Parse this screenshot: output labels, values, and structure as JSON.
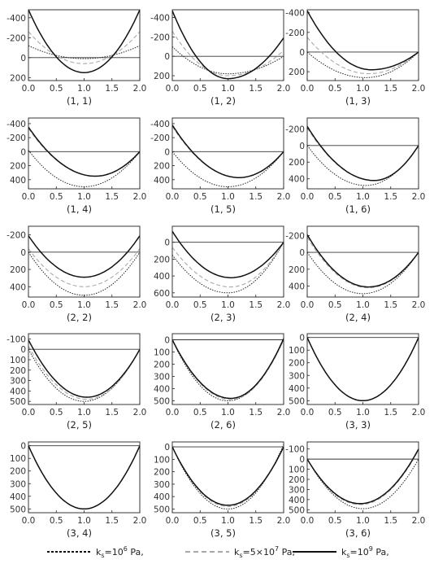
{
  "legend": {
    "items": [
      {
        "text": "k",
        "sub": "s",
        "mid": "=10",
        "sup": "6",
        "unit": " Pa,",
        "style": "dense-dashed"
      },
      {
        "text": "k",
        "sub": "s",
        "mid": "=5×10",
        "sup": "7",
        "unit": " Pa,",
        "style": "gray-dashed"
      },
      {
        "text": "k",
        "sub": "s",
        "mid": "=10",
        "sup": "9",
        "unit": " Pa,",
        "style": "solid"
      }
    ]
  },
  "chart_data": [
    {
      "type": "line",
      "title": "(1, 1)",
      "xlim": [
        0,
        2
      ],
      "ylim": [
        230,
        -480
      ],
      "yticks": [
        -400,
        -200,
        0,
        200
      ],
      "xticks": [
        0,
        0.5,
        1,
        1.5,
        2
      ],
      "series": [
        {
          "style": "solid",
          "points": [
            [
              0,
              -480
            ],
            [
              0.1,
              -320
            ],
            [
              1,
              150
            ],
            [
              1.9,
              -320
            ],
            [
              2,
              -480
            ]
          ]
        },
        {
          "style": "gray-dashed",
          "points": [
            [
              0,
              -260
            ],
            [
              1,
              60
            ],
            [
              2,
              -260
            ]
          ]
        },
        {
          "style": "dense-dashed",
          "points": [
            [
              0,
              -120
            ],
            [
              1,
              10
            ],
            [
              2,
              -120
            ]
          ]
        }
      ]
    },
    {
      "type": "line",
      "title": "(1, 2)",
      "xlim": [
        0,
        2
      ],
      "ylim": [
        250,
        -480
      ],
      "yticks": [
        -400,
        -200,
        0,
        200
      ],
      "xticks": [
        0,
        0.5,
        1,
        1.5,
        2
      ],
      "series": [
        {
          "style": "solid",
          "points": [
            [
              0,
              -470
            ],
            [
              0.05,
              -380
            ],
            [
              1,
              230
            ],
            [
              1.95,
              -80
            ],
            [
              2,
              -190
            ]
          ]
        },
        {
          "style": "gray-dashed",
          "points": [
            [
              0,
              -260
            ],
            [
              1,
              200
            ],
            [
              2,
              -60
            ]
          ]
        },
        {
          "style": "dense-dashed",
          "points": [
            [
              0,
              -100
            ],
            [
              1,
              180
            ],
            [
              2,
              0
            ]
          ]
        }
      ]
    },
    {
      "type": "line",
      "title": "(1, 3)",
      "xlim": [
        0,
        2
      ],
      "ylim": [
        290,
        -430
      ],
      "yticks": [
        -400,
        -200,
        0,
        200
      ],
      "xticks": [
        0,
        0.5,
        1,
        1.5,
        2
      ],
      "series": [
        {
          "style": "solid",
          "points": [
            [
              0,
              -420
            ],
            [
              0.05,
              -300
            ],
            [
              1.15,
              180
            ],
            [
              2,
              0
            ]
          ]
        },
        {
          "style": "gray-dashed",
          "points": [
            [
              0,
              -150
            ],
            [
              1.1,
              220
            ],
            [
              2,
              0
            ]
          ]
        },
        {
          "style": "dense-dashed",
          "points": [
            [
              0,
              0
            ],
            [
              1.05,
              260
            ],
            [
              2,
              0
            ]
          ]
        }
      ]
    },
    {
      "type": "line",
      "title": "(1, 4)",
      "xlim": [
        0,
        2
      ],
      "ylim": [
        530,
        -480
      ],
      "yticks": [
        -400,
        -200,
        0,
        200,
        400
      ],
      "xticks": [
        0,
        0.5,
        1,
        1.5,
        2
      ],
      "series": [
        {
          "style": "solid",
          "points": [
            [
              0,
              -350
            ],
            [
              1.2,
              350
            ],
            [
              2,
              0
            ]
          ]
        },
        {
          "style": "gray-dashed",
          "points": [
            [
              0,
              -330
            ],
            [
              1.2,
              350
            ],
            [
              2,
              0
            ]
          ]
        },
        {
          "style": "dense-dashed",
          "points": [
            [
              0,
              -20
            ],
            [
              1,
              500
            ],
            [
              2,
              0
            ]
          ]
        }
      ]
    },
    {
      "type": "line",
      "title": "(1, 5)",
      "xlim": [
        0,
        2
      ],
      "ylim": [
        530,
        -480
      ],
      "yticks": [
        -400,
        -200,
        0,
        200,
        400
      ],
      "xticks": [
        0,
        0.5,
        1,
        1.5,
        2
      ],
      "series": [
        {
          "style": "solid",
          "points": [
            [
              0,
              -380
            ],
            [
              1.2,
              370
            ],
            [
              2,
              0
            ]
          ]
        },
        {
          "style": "gray-dashed",
          "points": [
            [
              0,
              -360
            ],
            [
              1.2,
              370
            ],
            [
              2,
              0
            ]
          ]
        },
        {
          "style": "dense-dashed",
          "points": [
            [
              0,
              0
            ],
            [
              1,
              500
            ],
            [
              2,
              0
            ]
          ]
        }
      ]
    },
    {
      "type": "line",
      "title": "(1, 6)",
      "xlim": [
        0,
        2
      ],
      "ylim": [
        520,
        -330
      ],
      "yticks": [
        -200,
        0,
        200,
        400
      ],
      "xticks": [
        0,
        0.5,
        1,
        1.5,
        2
      ],
      "series": [
        {
          "style": "solid",
          "points": [
            [
              0,
              -230
            ],
            [
              1.2,
              420
            ],
            [
              2,
              0
            ]
          ]
        },
        {
          "style": "gray-dashed",
          "points": [
            [
              0,
              -210
            ],
            [
              1.2,
              420
            ],
            [
              2,
              0
            ]
          ]
        },
        {
          "style": "dense-dashed",
          "points": [
            [
              0,
              0
            ],
            [
              1.05,
              480
            ],
            [
              2,
              0
            ]
          ]
        }
      ]
    },
    {
      "type": "line",
      "title": "(2, 2)",
      "xlim": [
        0,
        2
      ],
      "ylim": [
        520,
        -300
      ],
      "yticks": [
        -200,
        0,
        200,
        400
      ],
      "xticks": [
        0,
        0.5,
        1,
        1.5,
        2
      ],
      "series": [
        {
          "style": "solid",
          "points": [
            [
              0,
              -190
            ],
            [
              0.05,
              -120
            ],
            [
              1,
              290
            ],
            [
              1.95,
              -120
            ],
            [
              2,
              -190
            ]
          ]
        },
        {
          "style": "gray-dashed",
          "points": [
            [
              0,
              -40
            ],
            [
              1,
              400
            ],
            [
              2,
              -40
            ]
          ]
        },
        {
          "style": "dense-dashed",
          "points": [
            [
              0,
              0
            ],
            [
              1,
              500
            ],
            [
              2,
              0
            ]
          ]
        }
      ]
    },
    {
      "type": "line",
      "title": "(2, 3)",
      "xlim": [
        0,
        2
      ],
      "ylim": [
        650,
        -190
      ],
      "yticks": [
        0,
        200,
        400,
        600
      ],
      "xticks": [
        0,
        0.5,
        1,
        1.5,
        2
      ],
      "series": [
        {
          "style": "solid",
          "points": [
            [
              0,
              -130
            ],
            [
              1.05,
              420
            ],
            [
              2,
              0
            ]
          ]
        },
        {
          "style": "gray-dashed",
          "points": [
            [
              0,
              60
            ],
            [
              1.05,
              530
            ],
            [
              2,
              0
            ]
          ]
        },
        {
          "style": "dense-dashed",
          "points": [
            [
              0,
              150
            ],
            [
              1,
              600
            ],
            [
              2,
              0
            ]
          ]
        }
      ]
    },
    {
      "type": "line",
      "title": "(2, 4)",
      "xlim": [
        0,
        2
      ],
      "ylim": [
        530,
        -310
      ],
      "yticks": [
        -200,
        0,
        200,
        400
      ],
      "xticks": [
        0,
        0.5,
        1,
        1.5,
        2
      ],
      "series": [
        {
          "style": "solid",
          "points": [
            [
              0,
              -210
            ],
            [
              1.1,
              410
            ],
            [
              2,
              0
            ]
          ]
        },
        {
          "style": "gray-dashed",
          "points": [
            [
              0,
              -180
            ],
            [
              1.1,
              420
            ],
            [
              2,
              0
            ]
          ]
        },
        {
          "style": "dense-dashed",
          "points": [
            [
              0,
              0
            ],
            [
              1,
              490
            ],
            [
              2,
              0
            ]
          ]
        }
      ]
    },
    {
      "type": "line",
      "title": "(2, 5)",
      "xlim": [
        0,
        2
      ],
      "ylim": [
        530,
        -150
      ],
      "yticks": [
        -100,
        0,
        100,
        200,
        300,
        400,
        500
      ],
      "xticks": [
        0,
        0.5,
        1,
        1.5,
        2
      ],
      "series": [
        {
          "style": "solid",
          "points": [
            [
              0,
              -90
            ],
            [
              1.05,
              460
            ],
            [
              2,
              0
            ]
          ]
        },
        {
          "style": "gray-dashed",
          "points": [
            [
              0,
              -30
            ],
            [
              1.05,
              480
            ],
            [
              2,
              0
            ]
          ]
        },
        {
          "style": "dense-dashed",
          "points": [
            [
              0,
              0
            ],
            [
              1,
              500
            ],
            [
              2,
              0
            ]
          ]
        }
      ]
    },
    {
      "type": "line",
      "title": "(2, 6)",
      "xlim": [
        0,
        2
      ],
      "ylim": [
        530,
        -50
      ],
      "yticks": [
        0,
        100,
        200,
        300,
        400,
        500
      ],
      "xticks": [
        0,
        0.5,
        1,
        1.5,
        2
      ],
      "series": [
        {
          "style": "solid",
          "points": [
            [
              0,
              0
            ],
            [
              1.05,
              480
            ],
            [
              2,
              -10
            ]
          ]
        },
        {
          "style": "gray-dashed",
          "points": [
            [
              0,
              0
            ],
            [
              1.05,
              490
            ],
            [
              2,
              0
            ]
          ]
        },
        {
          "style": "dense-dashed",
          "points": [
            [
              0,
              0
            ],
            [
              1,
              500
            ],
            [
              2,
              0
            ]
          ]
        }
      ]
    },
    {
      "type": "line",
      "title": "(3, 3)",
      "xlim": [
        0,
        2
      ],
      "ylim": [
        530,
        -30
      ],
      "yticks": [
        0,
        100,
        200,
        300,
        400,
        500
      ],
      "xticks": [
        0,
        0.5,
        1,
        1.5,
        2
      ],
      "series": [
        {
          "style": "solid",
          "points": [
            [
              0,
              0
            ],
            [
              1,
              500
            ],
            [
              2,
              0
            ]
          ]
        },
        {
          "style": "gray-dashed",
          "points": [
            [
              0,
              0
            ],
            [
              1,
              500
            ],
            [
              2,
              0
            ]
          ]
        },
        {
          "style": "dense-dashed",
          "points": [
            [
              0,
              0
            ],
            [
              1,
              500
            ],
            [
              2,
              0
            ]
          ]
        }
      ]
    },
    {
      "type": "line",
      "title": "(3, 4)",
      "xlim": [
        0,
        2
      ],
      "ylim": [
        530,
        -30
      ],
      "yticks": [
        0,
        100,
        200,
        300,
        400,
        500
      ],
      "xticks": [
        0,
        0.5,
        1,
        1.5,
        2
      ],
      "series": [
        {
          "style": "solid",
          "points": [
            [
              0,
              0
            ],
            [
              1,
              500
            ],
            [
              2,
              0
            ]
          ]
        },
        {
          "style": "gray-dashed",
          "points": [
            [
              0,
              0
            ],
            [
              1,
              500
            ],
            [
              2,
              0
            ]
          ]
        },
        {
          "style": "dense-dashed",
          "points": [
            [
              0,
              0
            ],
            [
              1,
              500
            ],
            [
              2,
              0
            ]
          ]
        }
      ]
    },
    {
      "type": "line",
      "title": "(3, 5)",
      "xlim": [
        0,
        2
      ],
      "ylim": [
        530,
        -40
      ],
      "yticks": [
        0,
        100,
        200,
        300,
        400,
        500
      ],
      "xticks": [
        0,
        0.5,
        1,
        1.5,
        2
      ],
      "series": [
        {
          "style": "solid",
          "points": [
            [
              0,
              0
            ],
            [
              1,
              470
            ],
            [
              2,
              0
            ]
          ]
        },
        {
          "style": "gray-dashed",
          "points": [
            [
              0,
              0
            ],
            [
              1,
              480
            ],
            [
              2,
              0
            ]
          ]
        },
        {
          "style": "dense-dashed",
          "points": [
            [
              0,
              0
            ],
            [
              1,
              500
            ],
            [
              2,
              -20
            ]
          ]
        }
      ]
    },
    {
      "type": "line",
      "title": "(3, 6)",
      "xlim": [
        0,
        2
      ],
      "ylim": [
        530,
        -170
      ],
      "yticks": [
        -100,
        0,
        100,
        200,
        300,
        400,
        500
      ],
      "xticks": [
        0,
        0.5,
        1,
        1.5,
        2
      ],
      "series": [
        {
          "style": "solid",
          "points": [
            [
              0,
              0
            ],
            [
              0.95,
              440
            ],
            [
              2,
              -100
            ]
          ]
        },
        {
          "style": "gray-dashed",
          "points": [
            [
              0,
              0
            ],
            [
              0.95,
              450
            ],
            [
              2,
              -90
            ]
          ]
        },
        {
          "style": "dense-dashed",
          "points": [
            [
              0,
              0
            ],
            [
              1,
              490
            ],
            [
              2,
              0
            ]
          ]
        }
      ]
    }
  ]
}
